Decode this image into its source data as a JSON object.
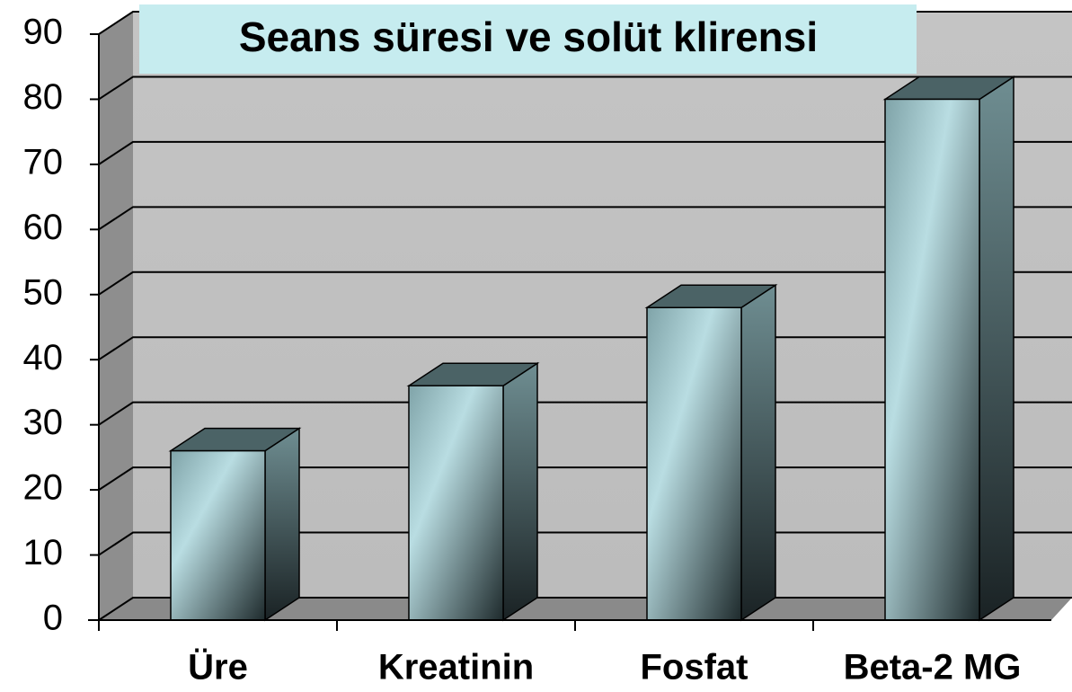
{
  "chart_data": {
    "type": "bar3d",
    "title": "Seans süresi ve solüt klirensi",
    "categories": [
      "Üre",
      "Kreatinin",
      "Fosfat",
      "Beta-2 MG"
    ],
    "values": [
      26,
      36,
      48,
      80
    ],
    "ylim": [
      0,
      90
    ],
    "yticks": [
      0,
      10,
      20,
      30,
      40,
      50,
      60,
      70,
      80,
      90
    ],
    "grid": true
  }
}
